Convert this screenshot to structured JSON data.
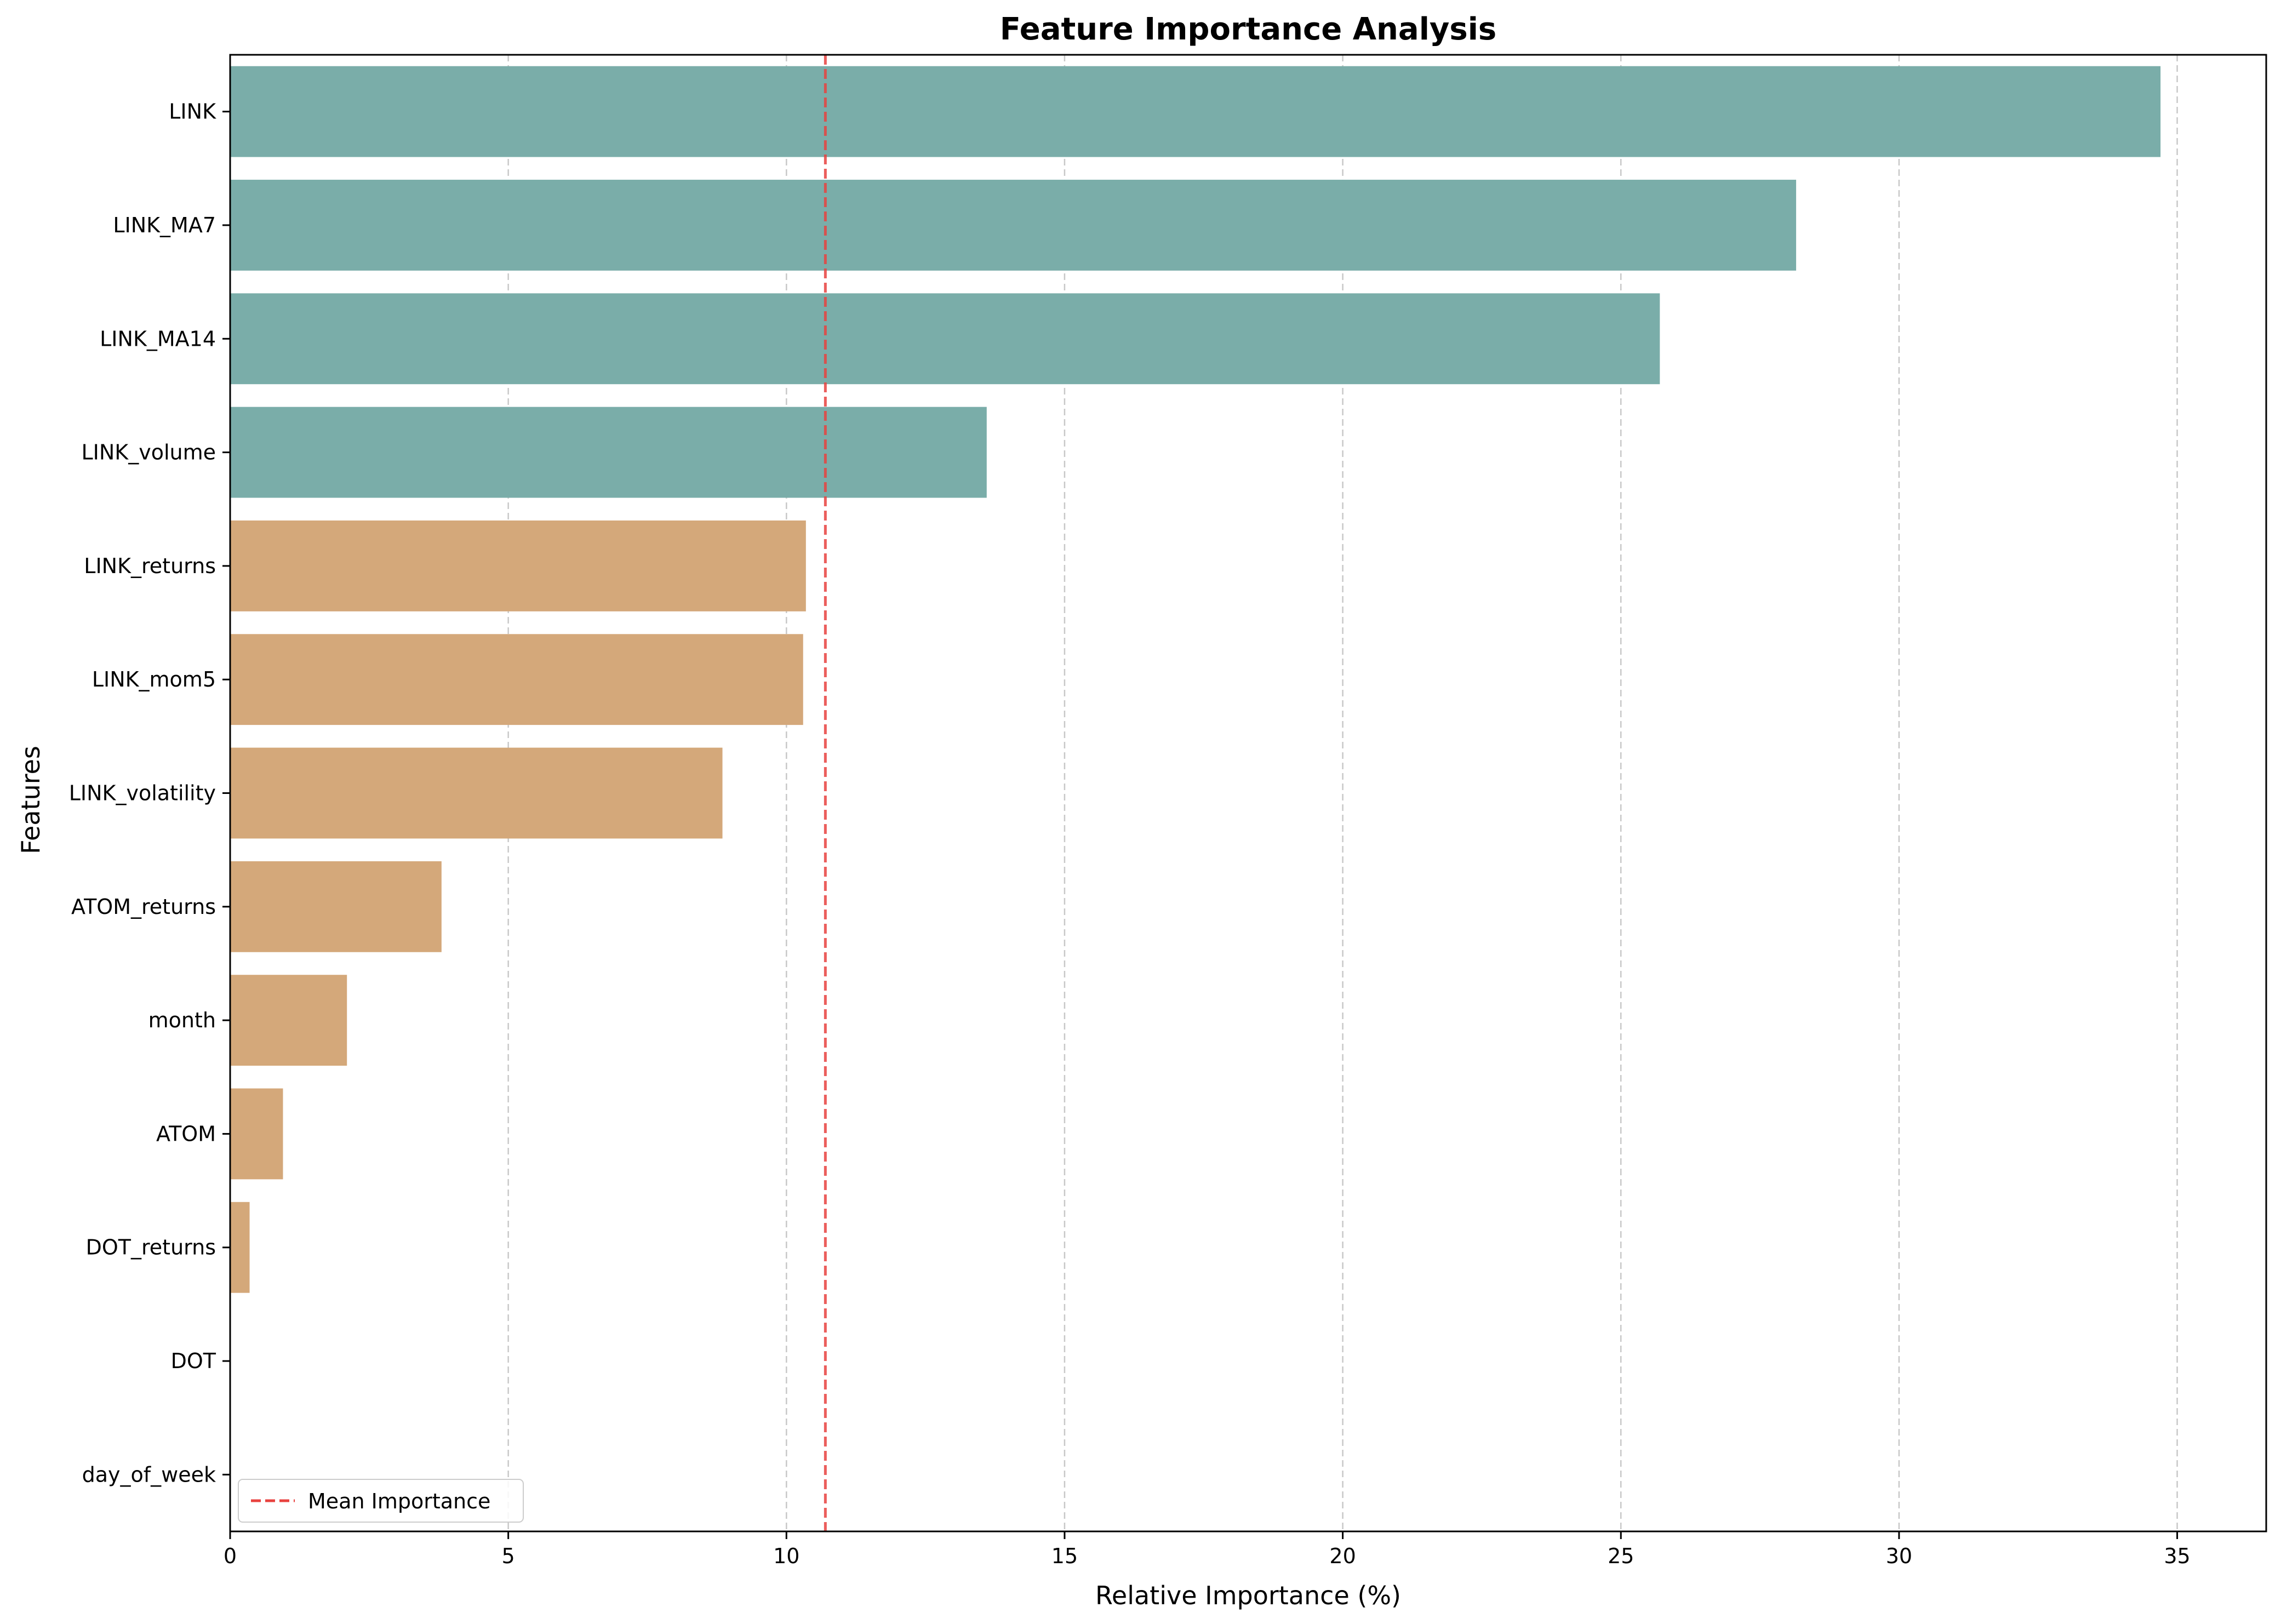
{
  "chart_data": {
    "type": "bar",
    "orientation": "horizontal",
    "title": "Feature Importance Analysis",
    "xlabel": "Relative Importance (%)",
    "ylabel": "Features",
    "xlim": [
      0,
      36.6
    ],
    "xticks": [
      0,
      5,
      10,
      15,
      20,
      25,
      30,
      35
    ],
    "grid": "x, dashed",
    "categories": [
      "LINK",
      "LINK_MA7",
      "LINK_MA14",
      "LINK_volume",
      "LINK_returns",
      "LINK_mom5",
      "LINK_volatility",
      "ATOM_returns",
      "month",
      "ATOM",
      "DOT_returns",
      "DOT",
      "day_of_week"
    ],
    "values": [
      34.7,
      28.15,
      25.7,
      13.6,
      10.35,
      10.3,
      8.85,
      3.8,
      2.1,
      0.95,
      0.35,
      0.0,
      0.0
    ],
    "bar_colors": [
      "#7aada9",
      "#7aada9",
      "#7aada9",
      "#7aada9",
      "#d4a87a",
      "#d4a87a",
      "#d4a87a",
      "#d4a87a",
      "#d4a87a",
      "#d4a87a",
      "#d4a87a",
      "#d4a87a",
      "#d4a87a"
    ],
    "reference_line": {
      "value": 10.7,
      "label": "Mean Importance",
      "color": "#e8423f",
      "style": "dashed"
    },
    "legend": {
      "position": "lower-left",
      "entries": [
        "Mean Importance"
      ]
    }
  }
}
